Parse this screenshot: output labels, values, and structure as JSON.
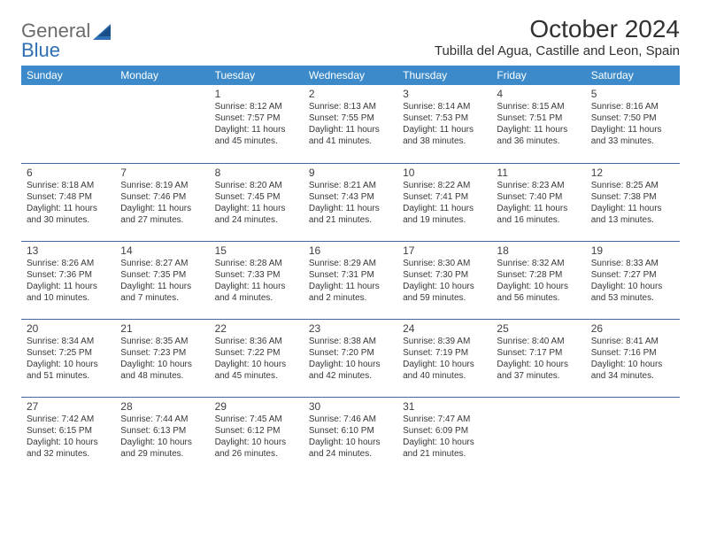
{
  "logo": {
    "word1": "General",
    "word2": "Blue"
  },
  "title": "October 2024",
  "location": "Tubilla del Agua, Castille and Leon, Spain",
  "colors": {
    "header_bg": "#3c8ac9",
    "header_text": "#ffffff",
    "rule": "#3c6aa0",
    "logo_gray": "#6b6b6b",
    "logo_blue": "#2f6fb3",
    "text": "#303030"
  },
  "days_of_week": [
    "Sunday",
    "Monday",
    "Tuesday",
    "Wednesday",
    "Thursday",
    "Friday",
    "Saturday"
  ],
  "weeks": [
    [
      null,
      null,
      {
        "n": "1",
        "sr": "Sunrise: 8:12 AM",
        "ss": "Sunset: 7:57 PM",
        "d1": "Daylight: 11 hours",
        "d2": "and 45 minutes."
      },
      {
        "n": "2",
        "sr": "Sunrise: 8:13 AM",
        "ss": "Sunset: 7:55 PM",
        "d1": "Daylight: 11 hours",
        "d2": "and 41 minutes."
      },
      {
        "n": "3",
        "sr": "Sunrise: 8:14 AM",
        "ss": "Sunset: 7:53 PM",
        "d1": "Daylight: 11 hours",
        "d2": "and 38 minutes."
      },
      {
        "n": "4",
        "sr": "Sunrise: 8:15 AM",
        "ss": "Sunset: 7:51 PM",
        "d1": "Daylight: 11 hours",
        "d2": "and 36 minutes."
      },
      {
        "n": "5",
        "sr": "Sunrise: 8:16 AM",
        "ss": "Sunset: 7:50 PM",
        "d1": "Daylight: 11 hours",
        "d2": "and 33 minutes."
      }
    ],
    [
      {
        "n": "6",
        "sr": "Sunrise: 8:18 AM",
        "ss": "Sunset: 7:48 PM",
        "d1": "Daylight: 11 hours",
        "d2": "and 30 minutes."
      },
      {
        "n": "7",
        "sr": "Sunrise: 8:19 AM",
        "ss": "Sunset: 7:46 PM",
        "d1": "Daylight: 11 hours",
        "d2": "and 27 minutes."
      },
      {
        "n": "8",
        "sr": "Sunrise: 8:20 AM",
        "ss": "Sunset: 7:45 PM",
        "d1": "Daylight: 11 hours",
        "d2": "and 24 minutes."
      },
      {
        "n": "9",
        "sr": "Sunrise: 8:21 AM",
        "ss": "Sunset: 7:43 PM",
        "d1": "Daylight: 11 hours",
        "d2": "and 21 minutes."
      },
      {
        "n": "10",
        "sr": "Sunrise: 8:22 AM",
        "ss": "Sunset: 7:41 PM",
        "d1": "Daylight: 11 hours",
        "d2": "and 19 minutes."
      },
      {
        "n": "11",
        "sr": "Sunrise: 8:23 AM",
        "ss": "Sunset: 7:40 PM",
        "d1": "Daylight: 11 hours",
        "d2": "and 16 minutes."
      },
      {
        "n": "12",
        "sr": "Sunrise: 8:25 AM",
        "ss": "Sunset: 7:38 PM",
        "d1": "Daylight: 11 hours",
        "d2": "and 13 minutes."
      }
    ],
    [
      {
        "n": "13",
        "sr": "Sunrise: 8:26 AM",
        "ss": "Sunset: 7:36 PM",
        "d1": "Daylight: 11 hours",
        "d2": "and 10 minutes."
      },
      {
        "n": "14",
        "sr": "Sunrise: 8:27 AM",
        "ss": "Sunset: 7:35 PM",
        "d1": "Daylight: 11 hours",
        "d2": "and 7 minutes."
      },
      {
        "n": "15",
        "sr": "Sunrise: 8:28 AM",
        "ss": "Sunset: 7:33 PM",
        "d1": "Daylight: 11 hours",
        "d2": "and 4 minutes."
      },
      {
        "n": "16",
        "sr": "Sunrise: 8:29 AM",
        "ss": "Sunset: 7:31 PM",
        "d1": "Daylight: 11 hours",
        "d2": "and 2 minutes."
      },
      {
        "n": "17",
        "sr": "Sunrise: 8:30 AM",
        "ss": "Sunset: 7:30 PM",
        "d1": "Daylight: 10 hours",
        "d2": "and 59 minutes."
      },
      {
        "n": "18",
        "sr": "Sunrise: 8:32 AM",
        "ss": "Sunset: 7:28 PM",
        "d1": "Daylight: 10 hours",
        "d2": "and 56 minutes."
      },
      {
        "n": "19",
        "sr": "Sunrise: 8:33 AM",
        "ss": "Sunset: 7:27 PM",
        "d1": "Daylight: 10 hours",
        "d2": "and 53 minutes."
      }
    ],
    [
      {
        "n": "20",
        "sr": "Sunrise: 8:34 AM",
        "ss": "Sunset: 7:25 PM",
        "d1": "Daylight: 10 hours",
        "d2": "and 51 minutes."
      },
      {
        "n": "21",
        "sr": "Sunrise: 8:35 AM",
        "ss": "Sunset: 7:23 PM",
        "d1": "Daylight: 10 hours",
        "d2": "and 48 minutes."
      },
      {
        "n": "22",
        "sr": "Sunrise: 8:36 AM",
        "ss": "Sunset: 7:22 PM",
        "d1": "Daylight: 10 hours",
        "d2": "and 45 minutes."
      },
      {
        "n": "23",
        "sr": "Sunrise: 8:38 AM",
        "ss": "Sunset: 7:20 PM",
        "d1": "Daylight: 10 hours",
        "d2": "and 42 minutes."
      },
      {
        "n": "24",
        "sr": "Sunrise: 8:39 AM",
        "ss": "Sunset: 7:19 PM",
        "d1": "Daylight: 10 hours",
        "d2": "and 40 minutes."
      },
      {
        "n": "25",
        "sr": "Sunrise: 8:40 AM",
        "ss": "Sunset: 7:17 PM",
        "d1": "Daylight: 10 hours",
        "d2": "and 37 minutes."
      },
      {
        "n": "26",
        "sr": "Sunrise: 8:41 AM",
        "ss": "Sunset: 7:16 PM",
        "d1": "Daylight: 10 hours",
        "d2": "and 34 minutes."
      }
    ],
    [
      {
        "n": "27",
        "sr": "Sunrise: 7:42 AM",
        "ss": "Sunset: 6:15 PM",
        "d1": "Daylight: 10 hours",
        "d2": "and 32 minutes."
      },
      {
        "n": "28",
        "sr": "Sunrise: 7:44 AM",
        "ss": "Sunset: 6:13 PM",
        "d1": "Daylight: 10 hours",
        "d2": "and 29 minutes."
      },
      {
        "n": "29",
        "sr": "Sunrise: 7:45 AM",
        "ss": "Sunset: 6:12 PM",
        "d1": "Daylight: 10 hours",
        "d2": "and 26 minutes."
      },
      {
        "n": "30",
        "sr": "Sunrise: 7:46 AM",
        "ss": "Sunset: 6:10 PM",
        "d1": "Daylight: 10 hours",
        "d2": "and 24 minutes."
      },
      {
        "n": "31",
        "sr": "Sunrise: 7:47 AM",
        "ss": "Sunset: 6:09 PM",
        "d1": "Daylight: 10 hours",
        "d2": "and 21 minutes."
      },
      null,
      null
    ]
  ]
}
